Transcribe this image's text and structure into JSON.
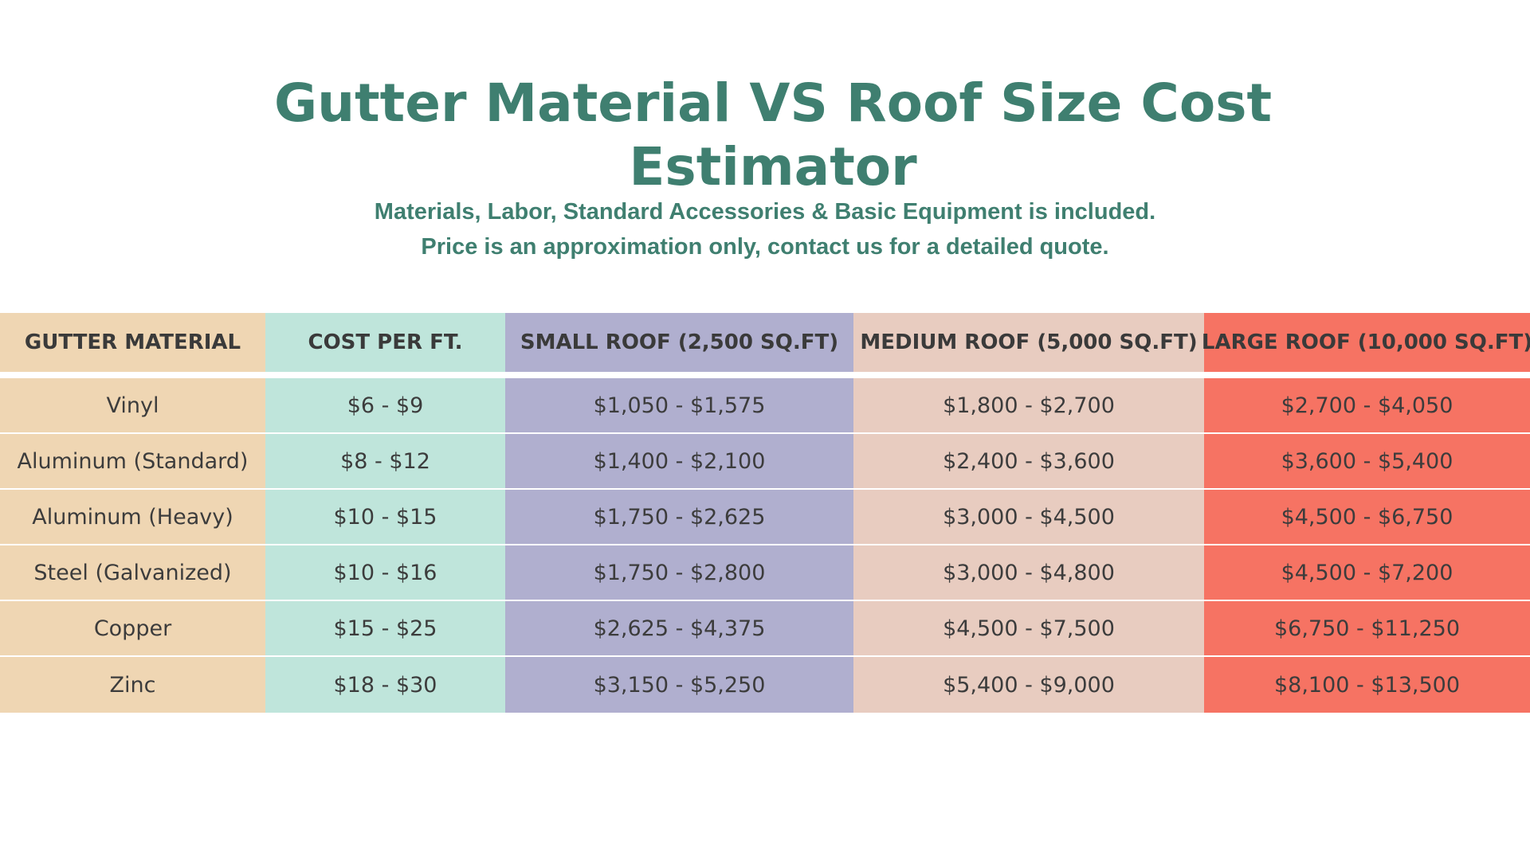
{
  "title": {
    "line1": "Gutter Material VS Roof Size Cost",
    "line2": "Estimator"
  },
  "subtitle": {
    "line1": "Materials, Labor, Standard Accessories & Basic Equipment is included.",
    "line2": "Price is an approximation only, contact us for a detailed quote."
  },
  "table": {
    "headers": [
      "GUTTER MATERIAL",
      "COST PER FT.",
      "SMALL ROOF (2,500 SQ.FT)",
      "MEDIUM ROOF (5,000 SQ.FT)",
      "LARGE ROOF (10,000 SQ.FT)"
    ],
    "rows": [
      [
        "Vinyl",
        "$6 - $9",
        "$1,050 - $1,575",
        "$1,800 - $2,700",
        "$2,700 - $4,050"
      ],
      [
        "Aluminum (Standard)",
        "$8 - $12",
        "$1,400 - $2,100",
        "$2,400 - $3,600",
        "$3,600 - $5,400"
      ],
      [
        "Aluminum (Heavy)",
        "$10 - $15",
        "$1,750 - $2,625",
        "$3,000 - $4,500",
        "$4,500 - $6,750"
      ],
      [
        "Steel (Galvanized)",
        "$10 - $16",
        "$1,750 - $2,800",
        "$3,000 - $4,800",
        "$4,500 - $7,200"
      ],
      [
        "Copper",
        "$15 - $25",
        "$2,625 - $4,375",
        "$4,500 - $7,500",
        "$6,750 - $11,250"
      ],
      [
        "Zinc",
        "$18 - $30",
        "$3,150 - $5,250",
        "$5,400 - $9,000",
        "$8,100 - $13,500"
      ]
    ]
  },
  "colors": {
    "heading": "#3f7f70",
    "col_material": "#efd6b3",
    "col_cost_per_ft": "#bfe5db",
    "col_small_roof": "#b0afcf",
    "col_medium_roof": "#e8ccc0",
    "col_large_roof": "#f67363"
  }
}
